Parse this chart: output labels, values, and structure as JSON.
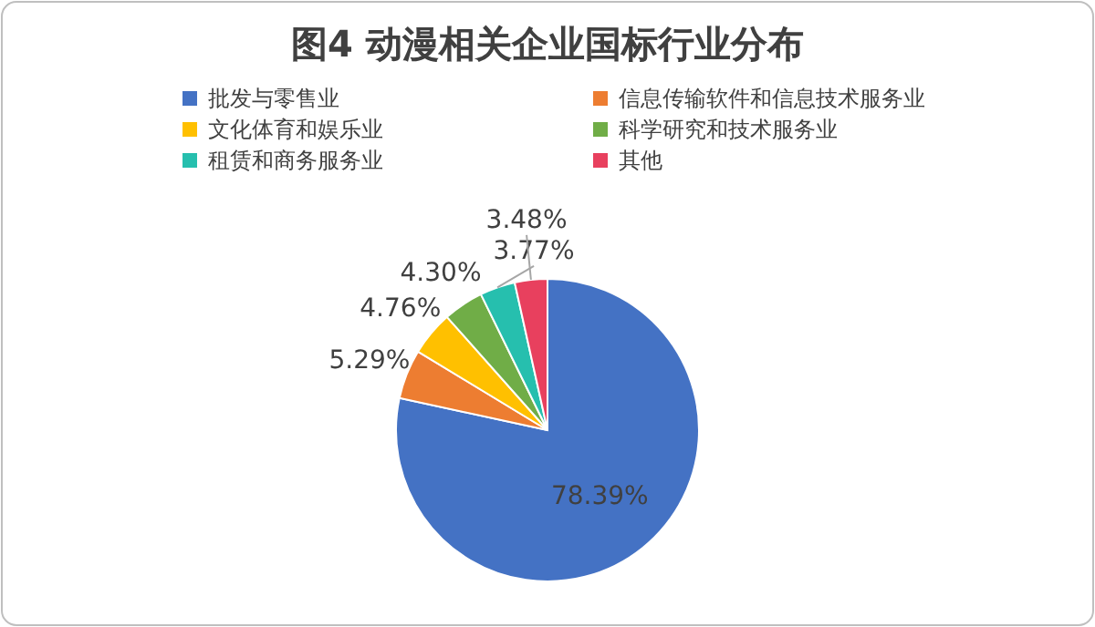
{
  "chart_data": {
    "type": "pie",
    "title": "图4  动漫相关企业国标行业分布",
    "categories": [
      "批发与零售业",
      "信息传输软件和信息技术服务业",
      "文化体育和娱乐业",
      "科学研究和技术服务业",
      "租赁和商务服务业",
      "其他"
    ],
    "values": [
      78.39,
      5.29,
      4.76,
      4.3,
      3.77,
      3.48
    ],
    "value_labels": [
      "78.39%",
      "5.29%",
      "4.76%",
      "4.30%",
      "3.77%",
      "3.48%"
    ],
    "colors": [
      "#4472c4",
      "#ed7d31",
      "#ffc000",
      "#70ad47",
      "#26bfae",
      "#e8405e"
    ],
    "legend": "top"
  }
}
